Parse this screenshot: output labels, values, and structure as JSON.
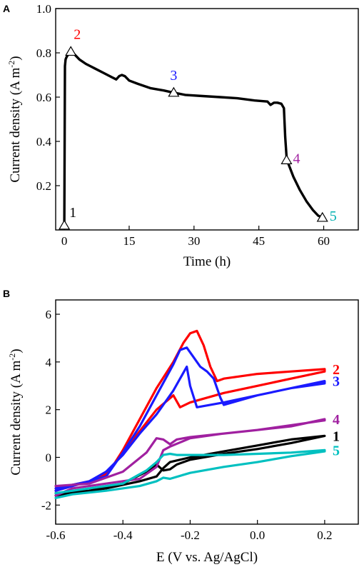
{
  "chart_data": [
    {
      "panel": "A",
      "type": "line",
      "xlabel": "Time (h)",
      "ylabel": "Current density (A m",
      "ylabel_sup": "-2",
      "ylabel_close": ")",
      "xlim": [
        -2,
        68
      ],
      "ylim": [
        0,
        1.0
      ],
      "xticks": [
        0,
        15,
        30,
        45,
        60
      ],
      "yticks": [
        0.2,
        0.4,
        0.6,
        0.8,
        1.0
      ],
      "ytick_labels": [
        "0.2",
        "0.4",
        "0.6",
        "0.8",
        "1.0"
      ],
      "series": [
        {
          "color": "#000000",
          "x": [
            0,
            0.15,
            0.3,
            0.5,
            0.8,
            1.2,
            1.8,
            2.5,
            3.5,
            5,
            7,
            9,
            11,
            12,
            12.7,
            13.3,
            14,
            15,
            17,
            20,
            23,
            25.3,
            28,
            32,
            36,
            40,
            44,
            47,
            47.7,
            48.5,
            49.3,
            50.2,
            50.8,
            51.1,
            51.4,
            51.8,
            53,
            54.5,
            56,
            57.5,
            58.7,
            59.7
          ],
          "y": [
            0.02,
            0.74,
            0.77,
            0.78,
            0.79,
            0.8,
            0.805,
            0.79,
            0.77,
            0.75,
            0.73,
            0.71,
            0.69,
            0.68,
            0.695,
            0.7,
            0.695,
            0.675,
            0.66,
            0.64,
            0.63,
            0.62,
            0.61,
            0.605,
            0.6,
            0.595,
            0.585,
            0.58,
            0.565,
            0.575,
            0.575,
            0.57,
            0.55,
            0.42,
            0.33,
            0.3,
            0.24,
            0.18,
            0.13,
            0.09,
            0.065,
            0.055
          ]
        }
      ],
      "markers": [
        {
          "label": "1",
          "x": 0,
          "y": 0.02,
          "color": "#000000"
        },
        {
          "label": "2",
          "x": 1.5,
          "y": 0.805,
          "color": "#ff0000"
        },
        {
          "label": "3",
          "x": 25.3,
          "y": 0.62,
          "color": "#1a1aff"
        },
        {
          "label": "4",
          "x": 51.4,
          "y": 0.315,
          "color": "#a020a0"
        },
        {
          "label": "5",
          "x": 59.7,
          "y": 0.055,
          "color": "#00b0b0"
        }
      ]
    },
    {
      "panel": "B",
      "type": "line",
      "xlabel": "E (V vs. Ag/AgCl)",
      "ylabel": "Current density (A m",
      "ylabel_sup": "-2",
      "ylabel_close": ")",
      "xlim": [
        -0.6,
        0.3
      ],
      "ylim": [
        -2.8,
        6.6
      ],
      "xticks": [
        -0.6,
        -0.4,
        -0.2,
        0.0,
        0.2
      ],
      "xtick_labels": [
        "-0.6",
        "-0.4",
        "-0.2",
        "0.0",
        "0.2"
      ],
      "yticks": [
        -2,
        0,
        2,
        4,
        6
      ],
      "ytick_labels": [
        "-2",
        "0",
        "2",
        "4",
        "6"
      ],
      "series": [
        {
          "name": "1",
          "color": "#000000",
          "x": [
            -0.6,
            -0.5,
            -0.4,
            -0.33,
            -0.3,
            -0.28,
            -0.26,
            -0.24,
            -0.2,
            -0.1,
            0.0,
            0.1,
            0.2,
            0.2,
            0.1,
            0.0,
            -0.1,
            -0.2,
            -0.26,
            -0.28,
            -0.3,
            -0.35,
            -0.45,
            -0.55,
            -0.6
          ],
          "y": [
            -1.5,
            -1.4,
            -1.1,
            -0.6,
            -0.3,
            -0.55,
            -0.5,
            -0.3,
            -0.1,
            0.15,
            0.35,
            0.6,
            0.9,
            0.9,
            0.75,
            0.5,
            0.25,
            0.0,
            -0.2,
            -0.45,
            -0.8,
            -1.0,
            -1.3,
            -1.5,
            -1.6
          ]
        },
        {
          "name": "2",
          "color": "#ff0000",
          "x": [
            -0.6,
            -0.5,
            -0.45,
            -0.4,
            -0.35,
            -0.3,
            -0.25,
            -0.22,
            -0.2,
            -0.18,
            -0.16,
            -0.14,
            -0.12,
            -0.1,
            0.0,
            0.1,
            0.2,
            0.2,
            0.1,
            0.0,
            -0.1,
            -0.2,
            -0.23,
            -0.25,
            -0.3,
            -0.35,
            -0.4,
            -0.45,
            -0.5,
            -0.6
          ],
          "y": [
            -1.3,
            -1.0,
            -0.8,
            0.3,
            1.6,
            2.9,
            4.0,
            4.8,
            5.2,
            5.3,
            4.7,
            3.8,
            3.2,
            3.3,
            3.5,
            3.6,
            3.7,
            3.6,
            3.3,
            3.0,
            2.7,
            2.3,
            2.1,
            2.6,
            2.0,
            1.1,
            0.2,
            -0.7,
            -1.0,
            -1.4
          ]
        },
        {
          "name": "3",
          "color": "#1a1aff",
          "x": [
            -0.6,
            -0.5,
            -0.45,
            -0.4,
            -0.35,
            -0.3,
            -0.25,
            -0.23,
            -0.21,
            -0.19,
            -0.17,
            -0.15,
            -0.13,
            -0.11,
            -0.1,
            0.0,
            0.1,
            0.2,
            0.2,
            0.1,
            0.0,
            -0.1,
            -0.18,
            -0.2,
            -0.21,
            -0.25,
            -0.3,
            -0.35,
            -0.4,
            -0.45,
            -0.5,
            -0.6
          ],
          "y": [
            -1.3,
            -1.0,
            -0.8,
            0.2,
            1.3,
            2.6,
            3.9,
            4.5,
            4.6,
            4.2,
            3.8,
            3.6,
            3.3,
            2.5,
            2.2,
            2.6,
            2.9,
            3.2,
            3.1,
            2.9,
            2.6,
            2.3,
            2.1,
            3.0,
            3.8,
            2.8,
            1.8,
            1.0,
            0.1,
            -0.6,
            -1.0,
            -1.4
          ]
        },
        {
          "name": "4",
          "color": "#a020a0",
          "x": [
            -0.6,
            -0.5,
            -0.4,
            -0.33,
            -0.3,
            -0.28,
            -0.26,
            -0.24,
            -0.2,
            -0.1,
            0.0,
            0.1,
            0.2,
            0.2,
            0.1,
            0.0,
            -0.1,
            -0.2,
            -0.26,
            -0.28,
            -0.3,
            -0.35,
            -0.45,
            -0.55,
            -0.6
          ],
          "y": [
            -1.2,
            -1.1,
            -0.6,
            0.2,
            0.8,
            0.75,
            0.55,
            0.75,
            0.85,
            1.0,
            1.15,
            1.3,
            1.6,
            1.55,
            1.35,
            1.15,
            1.0,
            0.8,
            0.45,
            0.3,
            -0.4,
            -0.9,
            -1.1,
            -1.3,
            -1.6
          ]
        },
        {
          "name": "5",
          "color": "#00c0c0",
          "x": [
            -0.6,
            -0.5,
            -0.4,
            -0.33,
            -0.3,
            -0.28,
            -0.26,
            -0.24,
            -0.2,
            -0.1,
            0.0,
            0.1,
            0.2,
            0.2,
            0.1,
            0.0,
            -0.1,
            -0.2,
            -0.26,
            -0.28,
            -0.3,
            -0.35,
            -0.45,
            -0.55,
            -0.6
          ],
          "y": [
            -1.5,
            -1.3,
            -1.1,
            -0.55,
            -0.2,
            0.1,
            0.15,
            0.1,
            0.1,
            0.1,
            0.15,
            0.2,
            0.3,
            0.25,
            0.05,
            -0.2,
            -0.4,
            -0.65,
            -0.9,
            -0.85,
            -1.0,
            -1.2,
            -1.4,
            -1.55,
            -1.7
          ]
        }
      ],
      "end_labels": [
        {
          "label": "2",
          "y": 3.7,
          "color": "#ff0000"
        },
        {
          "label": "3",
          "y": 3.2,
          "color": "#1a1aff"
        },
        {
          "label": "4",
          "y": 1.6,
          "color": "#a020a0"
        },
        {
          "label": "1",
          "y": 0.9,
          "color": "#000000"
        },
        {
          "label": "5",
          "y": 0.3,
          "color": "#00c0c0"
        }
      ]
    }
  ]
}
